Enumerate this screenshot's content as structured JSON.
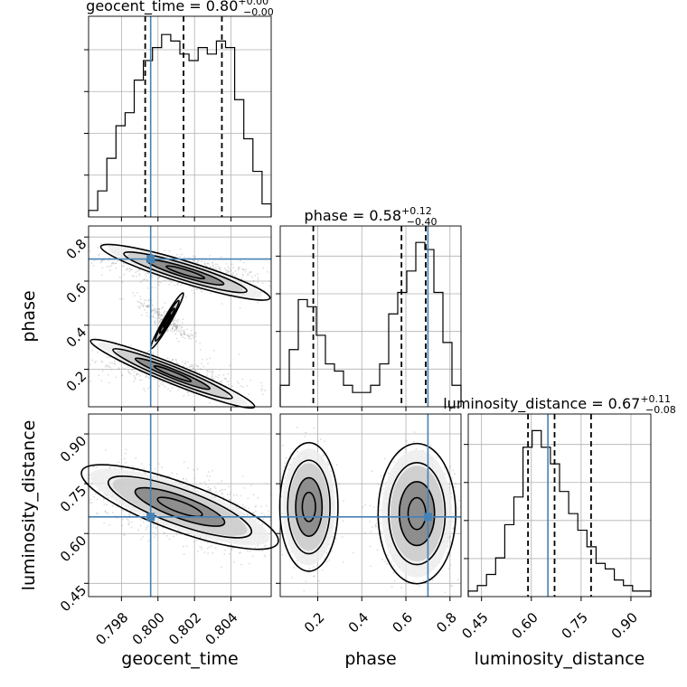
{
  "colors": {
    "truth": "#4682b4",
    "hist": "#000000",
    "grid": "#b0b0b0",
    "points": "#9a9a9a"
  },
  "chart_data": {
    "type": "corner",
    "parameters": [
      {
        "name": "geocent_time",
        "title_prefix": "geocent_time = ",
        "median": "0.80",
        "plus": "+0.00",
        "minus": "−0.00",
        "range": [
          0.7962,
          0.8062
        ],
        "ticks": [
          "0.798",
          "0.800",
          "0.802",
          "0.804"
        ],
        "tick_values": [
          0.798,
          0.8,
          0.802,
          0.804
        ],
        "truth": 0.7996,
        "quantiles": [
          0.7993,
          0.8014,
          0.8035
        ],
        "hist": [
          1,
          4,
          9,
          14,
          16,
          21,
          24,
          26,
          28,
          27,
          25,
          24,
          26,
          25,
          27,
          26,
          18,
          12,
          7,
          2
        ]
      },
      {
        "name": "phase",
        "title_prefix": "phase = ",
        "median": "0.58",
        "plus": "+0.12",
        "minus": "−0.40",
        "range": [
          0.03,
          0.85
        ],
        "ticks": [
          "0.2",
          "0.4",
          "0.6",
          "0.8"
        ],
        "tick_values": [
          0.2,
          0.4,
          0.6,
          0.8
        ],
        "truth": 0.7,
        "quantiles": [
          0.18,
          0.58,
          0.69
        ],
        "hist": [
          3,
          8,
          15,
          14,
          10,
          6,
          5,
          3,
          2,
          2,
          3,
          6,
          13,
          16,
          19,
          23,
          22,
          16,
          9,
          3
        ]
      },
      {
        "name": "luminosity_distance",
        "title_prefix": "luminosity_distance = ",
        "median": "0.67",
        "plus": "+0.11",
        "minus": "−0.08",
        "range": [
          0.41,
          0.96
        ],
        "ticks": [
          "0.45",
          "0.60",
          "0.75",
          "0.90"
        ],
        "tick_values": [
          0.45,
          0.6,
          0.75,
          0.9
        ],
        "truth": 0.65,
        "quantiles": [
          0.59,
          0.67,
          0.78
        ],
        "hist": [
          1,
          2,
          4,
          7,
          13,
          18,
          27,
          30,
          27,
          24,
          19,
          15,
          12,
          9,
          6,
          5,
          3,
          2,
          1,
          1
        ]
      }
    ]
  }
}
